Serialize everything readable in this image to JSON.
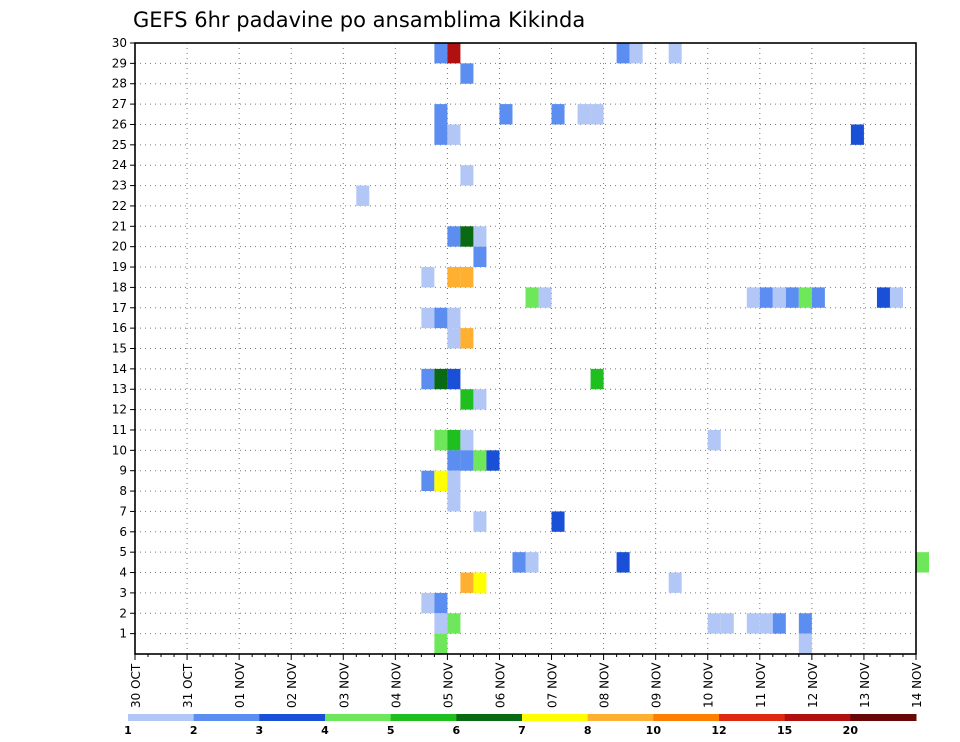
{
  "chart_data": {
    "type": "heatmap",
    "title": "GEFS 6hr padavine po ansamblima Kikinda",
    "x_tick_labels": [
      "30 OCT",
      "31 OCT",
      "01 NOV",
      "02 NOV",
      "03 NOV",
      "04 NOV",
      "05 NOV",
      "06 NOV",
      "07 NOV",
      "08 NOV",
      "09 NOV",
      "10 NOV",
      "11 NOV",
      "12 NOV",
      "13 NOV",
      "14 NOV"
    ],
    "y_tick_labels": [
      "1",
      "2",
      "3",
      "4",
      "5",
      "6",
      "7",
      "8",
      "9",
      "10",
      "11",
      "12",
      "13",
      "14",
      "15",
      "16",
      "17",
      "18",
      "19",
      "20",
      "21",
      "22",
      "23",
      "24",
      "25",
      "26",
      "27",
      "28",
      "29",
      "30"
    ],
    "xlim_days": [
      0,
      15
    ],
    "ylim_members": [
      0,
      30
    ],
    "grid": true,
    "legend": {
      "placement": "bottom",
      "thresholds": [
        "1",
        "2",
        "3",
        "4",
        "5",
        "6",
        "7",
        "8",
        "10",
        "12",
        "15",
        "20"
      ],
      "colors": [
        "#b3c7f7",
        "#5b8ef0",
        "#1a4fd8",
        "#6ee85a",
        "#1fbf1f",
        "#0a6a14",
        "#ffff00",
        "#ffb030",
        "#ff7f00",
        "#e02a10",
        "#b01010",
        "#6a0606"
      ]
    },
    "cells": [
      [
        5.75,
        30,
        2
      ],
      [
        6.0,
        30,
        11
      ],
      [
        9.25,
        30,
        2
      ],
      [
        9.5,
        30,
        1
      ],
      [
        10.25,
        30,
        1
      ],
      [
        6.25,
        29,
        2
      ],
      [
        5.75,
        27,
        2
      ],
      [
        7.0,
        27,
        2
      ],
      [
        8.0,
        27,
        2
      ],
      [
        8.5,
        27,
        1
      ],
      [
        8.75,
        27,
        1
      ],
      [
        5.75,
        26,
        2
      ],
      [
        6.0,
        26,
        1
      ],
      [
        13.75,
        26,
        3
      ],
      [
        6.25,
        24,
        1
      ],
      [
        4.25,
        23,
        1
      ],
      [
        6.0,
        21,
        2
      ],
      [
        6.25,
        21,
        6
      ],
      [
        6.5,
        21,
        1
      ],
      [
        6.5,
        20,
        2
      ],
      [
        5.5,
        19,
        1
      ],
      [
        6.0,
        19,
        8
      ],
      [
        6.25,
        19,
        8
      ],
      [
        7.5,
        18,
        4
      ],
      [
        7.75,
        18,
        1
      ],
      [
        11.75,
        18,
        1
      ],
      [
        12.0,
        18,
        2
      ],
      [
        12.25,
        18,
        1
      ],
      [
        12.5,
        18,
        2
      ],
      [
        12.75,
        18,
        4
      ],
      [
        13.0,
        18,
        2
      ],
      [
        14.25,
        18,
        3
      ],
      [
        14.5,
        18,
        1
      ],
      [
        5.5,
        17,
        1
      ],
      [
        5.75,
        17,
        2
      ],
      [
        6.0,
        17,
        1
      ],
      [
        6.0,
        16,
        1
      ],
      [
        6.25,
        16,
        8
      ],
      [
        5.5,
        14,
        2
      ],
      [
        5.75,
        14,
        6
      ],
      [
        6.0,
        14,
        3
      ],
      [
        8.75,
        14,
        5
      ],
      [
        6.25,
        13,
        5
      ],
      [
        6.5,
        13,
        1
      ],
      [
        5.75,
        11,
        4
      ],
      [
        6.0,
        11,
        5
      ],
      [
        6.25,
        11,
        1
      ],
      [
        11.0,
        11,
        1
      ],
      [
        6.0,
        10,
        2
      ],
      [
        6.25,
        10,
        2
      ],
      [
        6.5,
        10,
        4
      ],
      [
        6.75,
        10,
        3
      ],
      [
        5.5,
        9,
        2
      ],
      [
        5.75,
        9,
        7
      ],
      [
        6.0,
        9,
        1
      ],
      [
        6.0,
        8,
        1
      ],
      [
        6.5,
        7,
        1
      ],
      [
        8.0,
        7,
        3
      ],
      [
        7.25,
        5,
        2
      ],
      [
        7.5,
        5,
        1
      ],
      [
        9.25,
        5,
        3
      ],
      [
        15.0,
        5,
        4
      ],
      [
        6.25,
        4,
        8
      ],
      [
        6.5,
        4,
        7
      ],
      [
        10.25,
        4,
        1
      ],
      [
        5.5,
        3,
        1
      ],
      [
        5.75,
        3,
        2
      ],
      [
        5.75,
        2,
        1
      ],
      [
        6.0,
        2,
        4
      ],
      [
        11.0,
        2,
        1
      ],
      [
        11.25,
        2,
        1
      ],
      [
        11.75,
        2,
        1
      ],
      [
        12.0,
        2,
        1
      ],
      [
        12.25,
        2,
        2
      ],
      [
        12.75,
        2,
        2
      ],
      [
        5.75,
        1,
        4
      ],
      [
        12.75,
        1,
        1
      ]
    ]
  }
}
